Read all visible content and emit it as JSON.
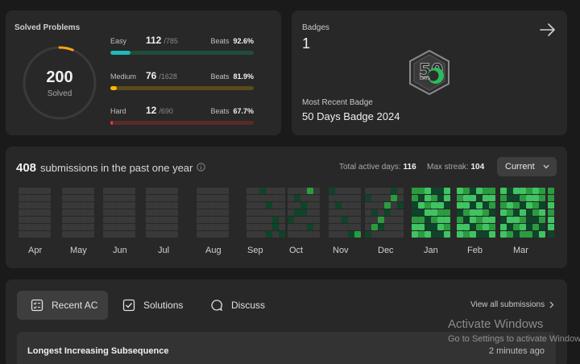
{
  "solved": {
    "title": "Solved Problems",
    "total": "200",
    "total_label": "Solved",
    "ring_fraction": 0.06,
    "colors": {
      "easy": "#1cbaba",
      "medium": "#ffb700",
      "hard": "#f63737"
    },
    "easy": {
      "name": "Easy",
      "count": "112",
      "total": "/785",
      "beats_label": "Beats",
      "beats": "92.6%",
      "fraction": 0.143
    },
    "medium": {
      "name": "Medium",
      "count": "76",
      "total": "/1628",
      "beats_label": "Beats",
      "beats": "81.9%",
      "fraction": 0.047
    },
    "hard": {
      "name": "Hard",
      "count": "12",
      "total": "/690",
      "beats_label": "Beats",
      "beats": "67.7%",
      "fraction": 0.017
    }
  },
  "badges": {
    "title": "Badges",
    "count": "1",
    "recent_label": "Most Recent Badge",
    "recent_name": "50 Days Badge 2024",
    "badge_icon_number": "50",
    "badge_icon_text": "DAYS"
  },
  "heatmap": {
    "count": "408",
    "label": "submissions in the past one year",
    "active_days_label": "Total active days:",
    "active_days": "116",
    "max_streak_label": "Max streak:",
    "max_streak": "104",
    "range_select": "Current",
    "months": [
      "Apr",
      "May",
      "Jun",
      "Jul",
      "Aug",
      "Sep",
      "Oct",
      "Nov",
      "Dec",
      "Jan",
      "Feb",
      "Mar"
    ]
  },
  "recent": {
    "tabs": [
      "Recent AC",
      "Solutions",
      "Discuss"
    ],
    "view_all": "View all submissions",
    "items": [
      {
        "title": "Longest Increasing Subsequence",
        "time": "2 minutes ago"
      }
    ]
  },
  "watermark": {
    "line1": "Activate Windows",
    "line2": "Go to Settings to activate Windows."
  }
}
